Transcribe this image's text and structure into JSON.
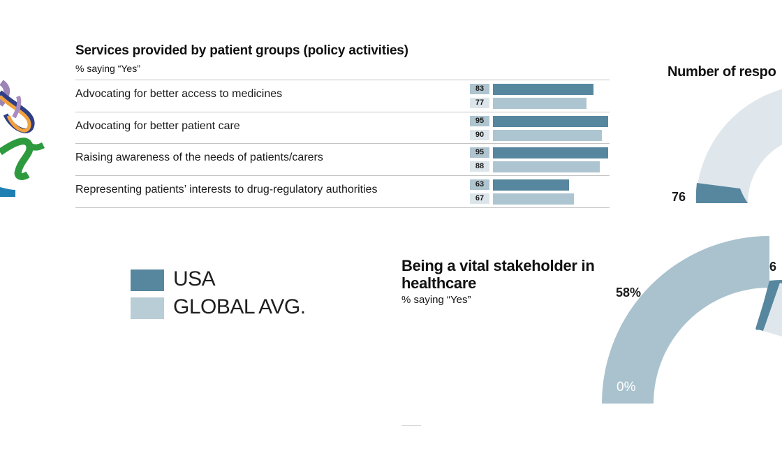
{
  "colors": {
    "usa": "#56879e",
    "global": "#adc5d0",
    "usa_box": "#aec4cf",
    "global_box": "#dbe5ea",
    "gauge_light": "#dfe7ec",
    "gauge_mid": "#a9c2cd"
  },
  "chart_data": [
    {
      "type": "bar",
      "title": "Services provided by patient groups (policy activities)",
      "subtitle": "% saying “Yes”",
      "categories": [
        "Advocating for better access to medicines",
        "Advocating for better patient care",
        "Raising awareness of the needs of patients/carers",
        "Representing patients’ interests to drug-regulatory authorities"
      ],
      "series": [
        {
          "name": "USA",
          "values": [
            83,
            95,
            95,
            63
          ]
        },
        {
          "name": "GLOBAL AVG.",
          "values": [
            77,
            90,
            88,
            67
          ]
        }
      ],
      "xlim": [
        0,
        95
      ],
      "legend": "bottom-left"
    },
    {
      "type": "pie",
      "title": "Being a vital stakeholder in healthcare",
      "subtitle": "% saying “Yes”",
      "labels": [
        "0%",
        "58%",
        "6"
      ]
    },
    {
      "type": "pie",
      "title": "Number of respo",
      "labels": [
        "76"
      ]
    }
  ],
  "legend": {
    "usa": "USA",
    "global": "GLOBAL AVG."
  }
}
